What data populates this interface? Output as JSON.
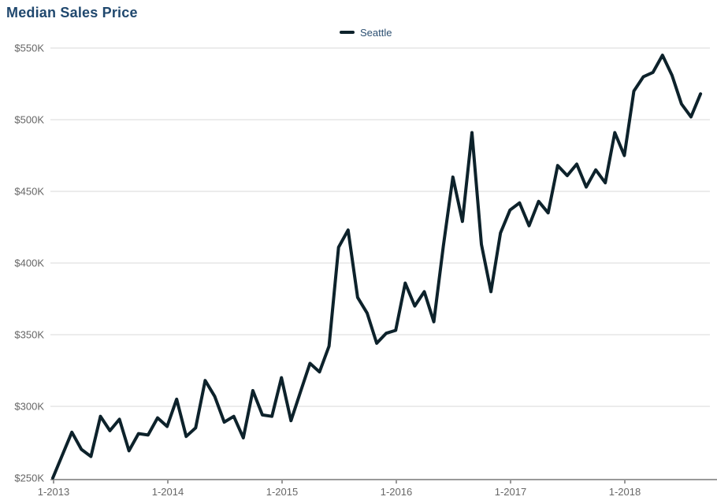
{
  "title": "Median Sales Price",
  "legend": {
    "label": "Seattle"
  },
  "colors": {
    "line": "#0d222b",
    "title_text": "#20486e",
    "legend_text": "#2d5072",
    "axis_label_text": "#666666",
    "gridline": "#d9d9d9",
    "axis_line": "#999999",
    "background": "#ffffff"
  },
  "chart_data": {
    "type": "line",
    "title": "Median Sales Price",
    "legend_entries": [
      "Seattle"
    ],
    "legend_position": "top-center",
    "grid": "horizontal-only",
    "x_tick_labels": [
      "1-2013",
      "1-2014",
      "1-2015",
      "1-2016",
      "1-2017",
      "1-2018"
    ],
    "y_tick_labels": [
      "$250K",
      "$300K",
      "$350K",
      "$400K",
      "$450K",
      "$500K",
      "$550K"
    ],
    "y_tick_values_thousands": [
      250,
      300,
      350,
      400,
      450,
      500,
      550
    ],
    "ylim_thousands": [
      250,
      550
    ],
    "values_unit": "USD thousands (median sales price)",
    "x_months": [
      "2013-01",
      "2013-02",
      "2013-03",
      "2013-04",
      "2013-05",
      "2013-06",
      "2013-07",
      "2013-08",
      "2013-09",
      "2013-10",
      "2013-11",
      "2013-12",
      "2014-01",
      "2014-02",
      "2014-03",
      "2014-04",
      "2014-05",
      "2014-06",
      "2014-07",
      "2014-08",
      "2014-09",
      "2014-10",
      "2014-11",
      "2014-12",
      "2015-01",
      "2015-02",
      "2015-03",
      "2015-04",
      "2015-05",
      "2015-06",
      "2015-07",
      "2015-08",
      "2015-09",
      "2015-10",
      "2015-11",
      "2015-12",
      "2016-01",
      "2016-02",
      "2016-03",
      "2016-04",
      "2016-05",
      "2016-06",
      "2016-07",
      "2016-08",
      "2016-09",
      "2016-10",
      "2016-11",
      "2016-12",
      "2017-01",
      "2017-02",
      "2017-03",
      "2017-04",
      "2017-05",
      "2017-06",
      "2017-07",
      "2017-08",
      "2017-09",
      "2017-10",
      "2017-11",
      "2017-12",
      "2018-01",
      "2018-02",
      "2018-03",
      "2018-04",
      "2018-05",
      "2018-06",
      "2018-07",
      "2018-08",
      "2018-09"
    ],
    "series": [
      {
        "name": "Seattle",
        "color": "#0d222b",
        "values": [
          250,
          266,
          282,
          270,
          265,
          293,
          283,
          291,
          269,
          281,
          280,
          292,
          286,
          305,
          279,
          285,
          318,
          307,
          289,
          293,
          278,
          311,
          294,
          293,
          320,
          290,
          310,
          330,
          324,
          342,
          411,
          423,
          376,
          365,
          344,
          351,
          353,
          386,
          370,
          380,
          359,
          412,
          460,
          429,
          491,
          413,
          380,
          421,
          437,
          442,
          426,
          443,
          435,
          468,
          461,
          469,
          453,
          465,
          456,
          491,
          475,
          520,
          530,
          533,
          545,
          531,
          511,
          502,
          518
        ]
      }
    ]
  }
}
